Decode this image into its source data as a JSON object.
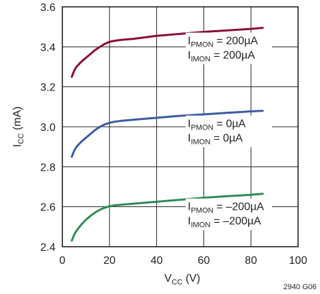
{
  "chart_data": {
    "type": "line",
    "xlabel": {
      "main": "V",
      "sub": "CC",
      "unit": " (V)"
    },
    "ylabel": {
      "main": "I",
      "sub": "CC",
      "unit": " (mA)"
    },
    "xlim": [
      0,
      100
    ],
    "ylim": [
      2.4,
      3.6
    ],
    "x_ticks": [
      "0",
      "20",
      "40",
      "60",
      "80",
      "100"
    ],
    "y_ticks": [
      "2.4",
      "2.6",
      "2.8",
      "3.0",
      "3.2",
      "3.4",
      "3.6"
    ],
    "grid": true,
    "figure_id": "2940 G06",
    "series": [
      {
        "color": "#8b0a3c",
        "x": [
          4,
          5,
          6,
          8,
          10,
          12,
          14,
          16,
          18,
          20,
          22,
          25,
          30,
          40,
          50,
          60,
          70,
          80,
          85
        ],
        "y": [
          3.25,
          3.28,
          3.3,
          3.325,
          3.345,
          3.365,
          3.385,
          3.4,
          3.415,
          3.425,
          3.43,
          3.435,
          3.44,
          3.455,
          3.465,
          3.475,
          3.482,
          3.49,
          3.495
        ],
        "label_lines": [
          {
            "main": "I",
            "sub": "PMON",
            "rest": " = 200µA"
          },
          {
            "main": "I",
            "sub": "IMON",
            "rest": " = 200µA"
          }
        ]
      },
      {
        "color": "#3c5aa0",
        "x": [
          4,
          5,
          6,
          8,
          10,
          12,
          14,
          16,
          18,
          20,
          22,
          25,
          30,
          40,
          50,
          60,
          70,
          80,
          85
        ],
        "y": [
          2.85,
          2.88,
          2.9,
          2.925,
          2.945,
          2.965,
          2.985,
          3.0,
          3.012,
          3.02,
          3.025,
          3.03,
          3.035,
          3.045,
          3.055,
          3.062,
          3.07,
          3.077,
          3.08
        ],
        "label_lines": [
          {
            "main": "I",
            "sub": "PMON",
            "rest": " = 0µA"
          },
          {
            "main": "I",
            "sub": "IMON",
            "rest": " = 0µA"
          }
        ]
      },
      {
        "color": "#2e8b57",
        "x": [
          4,
          5,
          6,
          8,
          10,
          12,
          14,
          16,
          18,
          20,
          22,
          25,
          30,
          40,
          50,
          60,
          70,
          80,
          85
        ],
        "y": [
          2.43,
          2.46,
          2.48,
          2.51,
          2.535,
          2.555,
          2.572,
          2.585,
          2.595,
          2.602,
          2.607,
          2.61,
          2.615,
          2.625,
          2.635,
          2.645,
          2.653,
          2.66,
          2.665
        ],
        "label_lines": [
          {
            "main": "I",
            "sub": "PMON",
            "rest": " = –200µA"
          },
          {
            "main": "I",
            "sub": "IMON",
            "rest": " = –200µA"
          }
        ]
      }
    ]
  }
}
